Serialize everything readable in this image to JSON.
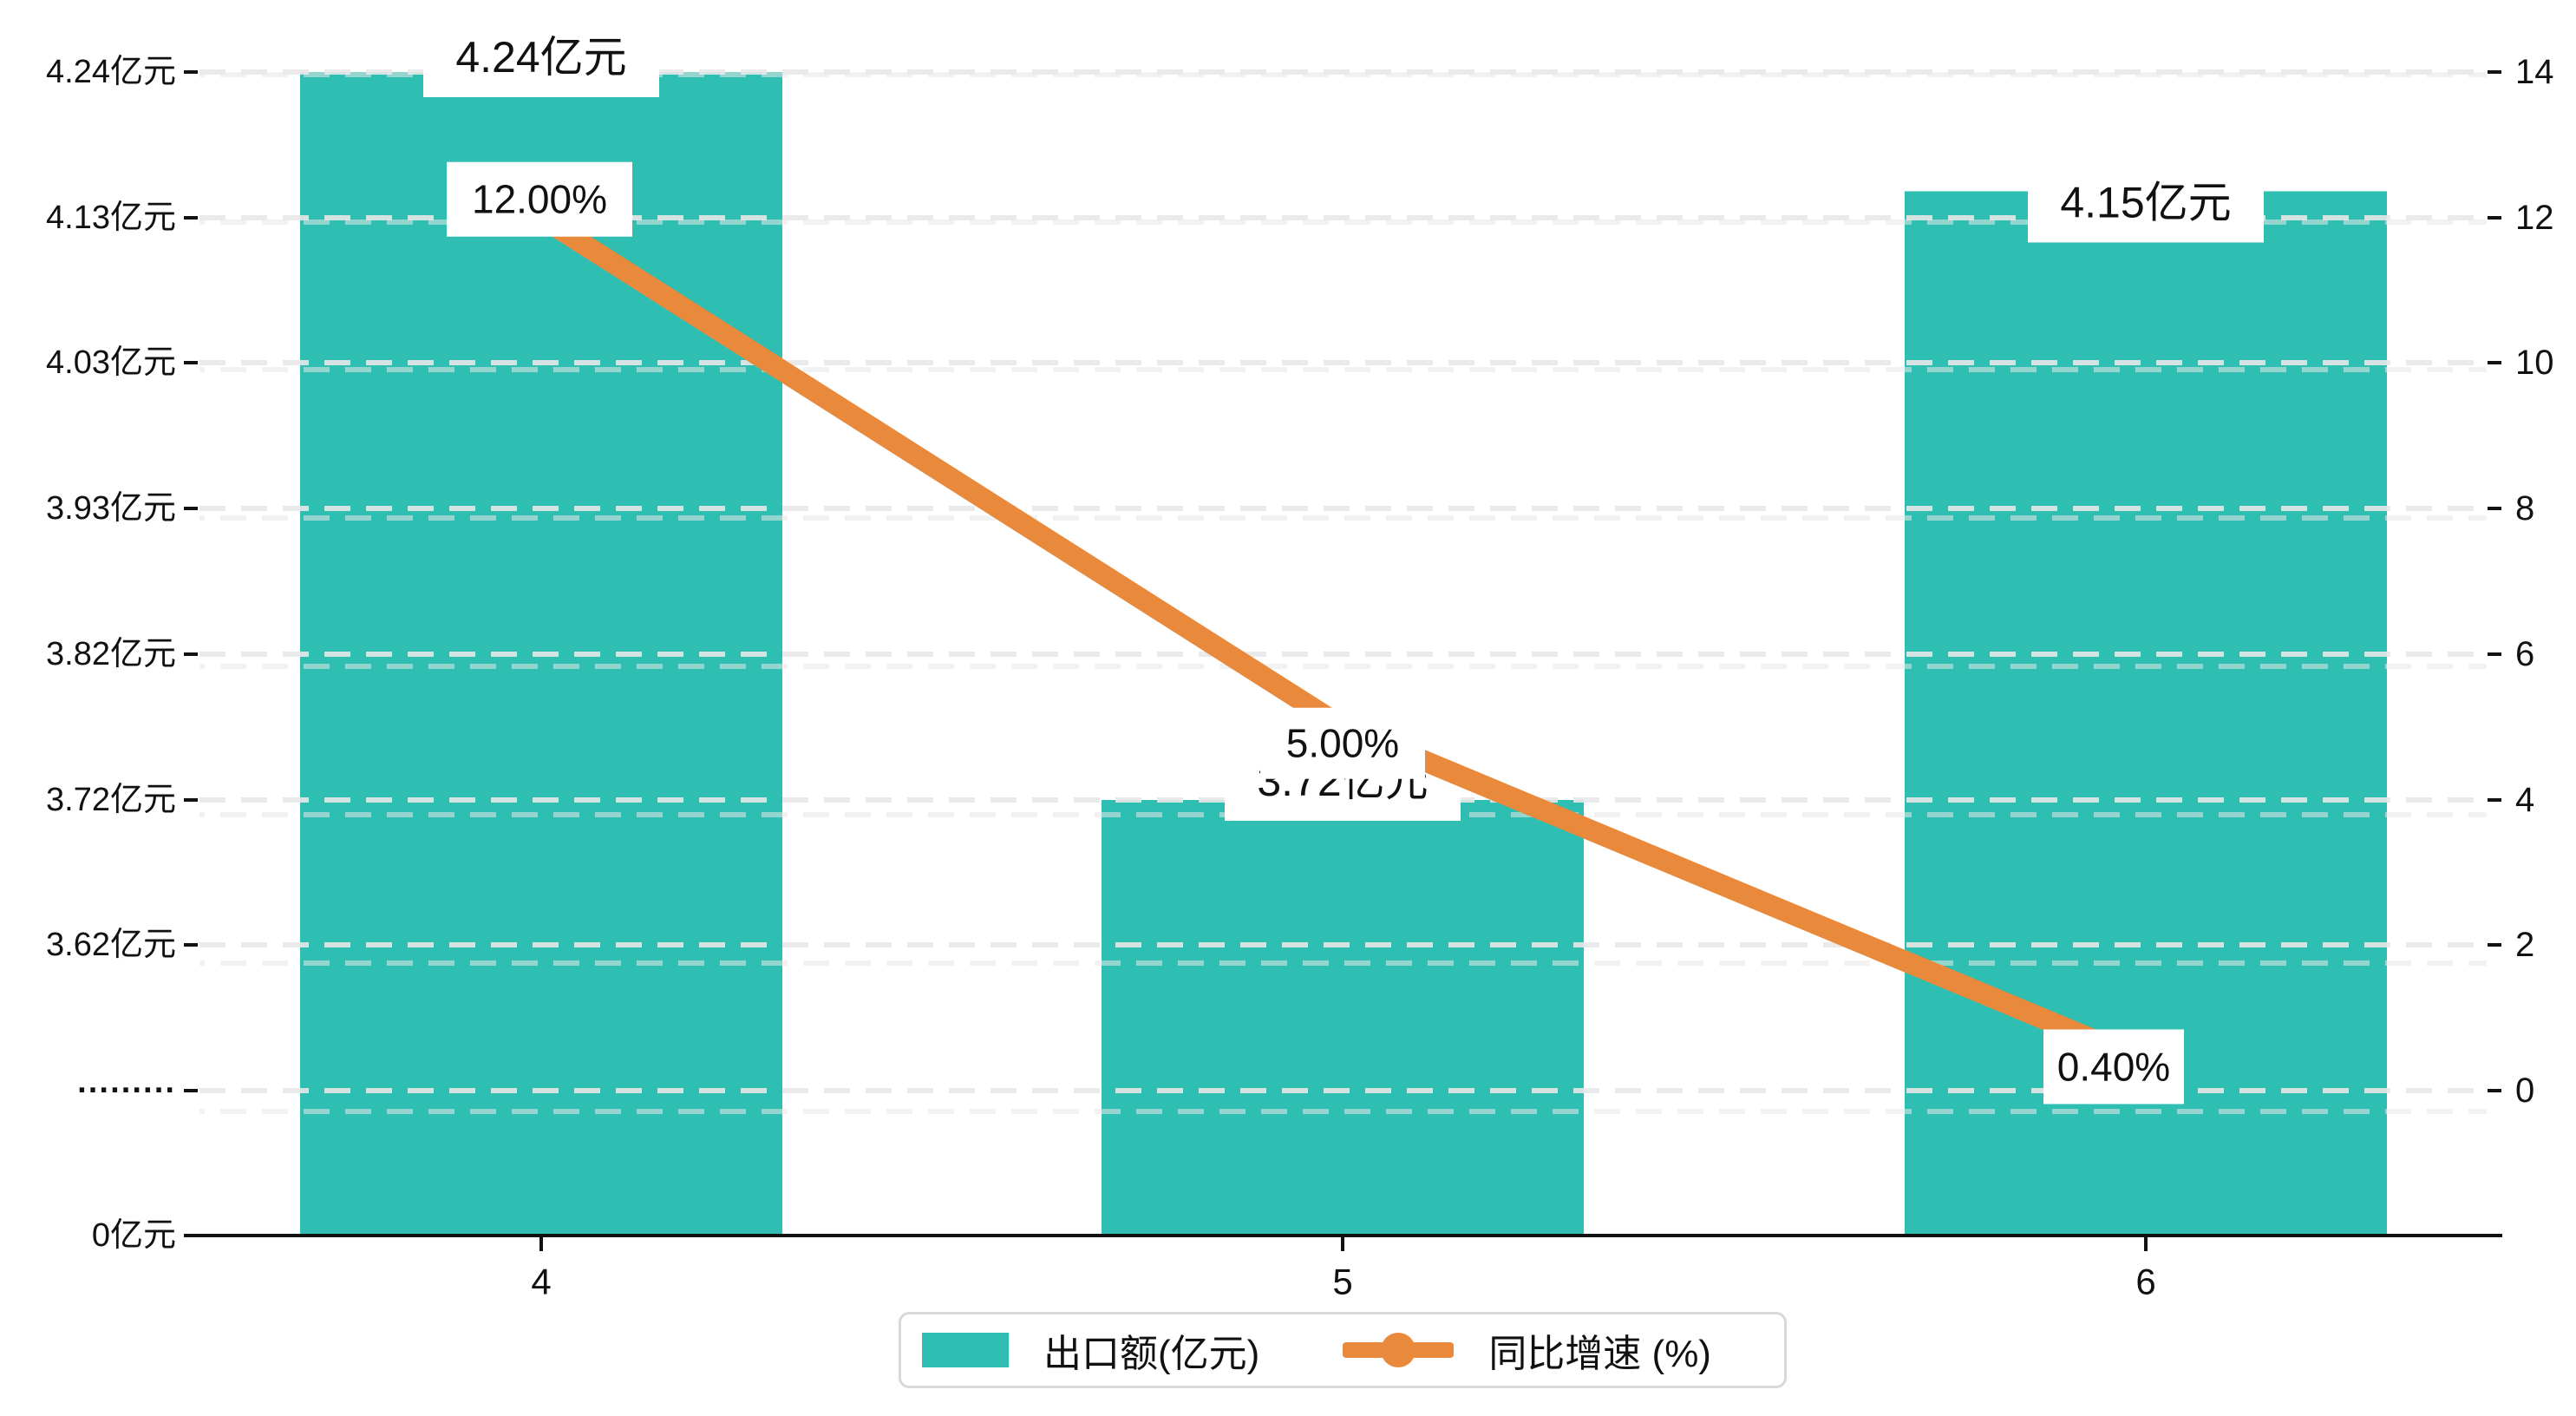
{
  "chart_data": {
    "type": "combo-bar-line",
    "categories": [
      "4",
      "5",
      "6"
    ],
    "series": [
      {
        "name": "出口额(亿元)",
        "type": "bar",
        "values": [
          4.24,
          3.72,
          4.15
        ],
        "labels": [
          "4.24亿元",
          "3.72亿元",
          "4.15亿元"
        ],
        "color": "#2fbeb2"
      },
      {
        "name": "同比增速 (%)",
        "type": "line",
        "values": [
          12.0,
          5.0,
          0.4
        ],
        "labels": [
          "12.00%",
          "5.00%",
          "0.40%"
        ],
        "color": "#e8893b"
      }
    ],
    "left_axis": {
      "tick_labels": [
        "4.24亿元",
        "4.13亿元",
        "4.03亿元",
        "3.93亿元",
        "3.82亿元",
        "3.72亿元",
        "3.62亿元",
        "·········",
        "0亿元"
      ],
      "tick_values": [
        4.24,
        4.13,
        4.03,
        3.93,
        3.82,
        3.72,
        3.62
      ],
      "axis_break": true,
      "min": 0,
      "max": 4.24
    },
    "right_axis": {
      "tick_labels": [
        "14",
        "12",
        "10",
        "8",
        "6",
        "4",
        "2",
        "0"
      ],
      "tick_values": [
        14,
        12,
        10,
        8,
        6,
        4,
        2,
        0
      ],
      "min": 0,
      "max": 14
    },
    "x_axis": {
      "tick_labels": [
        "4",
        "5",
        "6"
      ]
    },
    "legend": [
      {
        "label": "出口额(亿元)",
        "color": "#2fbeb2",
        "type": "bar"
      },
      {
        "label": "同比增速 (%)",
        "color": "#e8893b",
        "type": "line"
      }
    ],
    "grid": true,
    "colors": {
      "bar": "#2fbeb2",
      "line": "#e8893b",
      "grid": "#e8e8e8",
      "axis": "#111111",
      "text": "#111111",
      "label_box": "#ffffff",
      "legend_border": "#d9d9d9",
      "background": "#ffffff"
    }
  }
}
